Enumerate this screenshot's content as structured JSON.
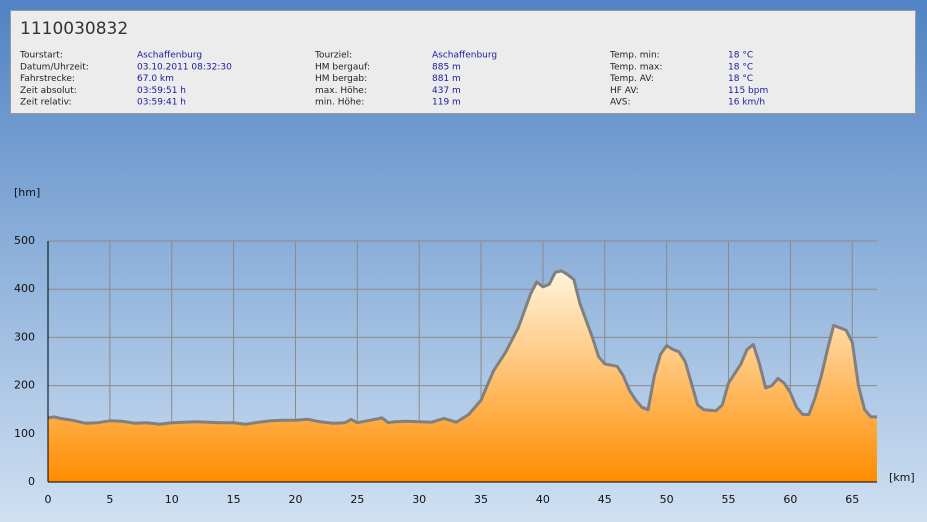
{
  "header": {
    "title": "1110030832",
    "fields": [
      [
        "Tourstart:",
        "Aschaffenburg"
      ],
      [
        "Datum/Uhrzeit:",
        "03.10.2011 08:32:30"
      ],
      [
        "Fahrstrecke:",
        "67.0 km"
      ],
      [
        "Zeit absolut:",
        "03:59:51 h"
      ],
      [
        "Zeit relativ:",
        "03:59:41 h"
      ],
      [
        "Tourziel:",
        "Aschaffenburg"
      ],
      [
        "HM bergauf:",
        "885 m"
      ],
      [
        "HM bergab:",
        "881 m"
      ],
      [
        "max. Höhe:",
        "437 m"
      ],
      [
        "min. Höhe:",
        "119 m"
      ],
      [
        "Temp. min:",
        "18 °C"
      ],
      [
        "Temp. max:",
        "18 °C"
      ],
      [
        "Temp. AV:",
        "18 °C"
      ],
      [
        "HF AV:",
        "115 bpm"
      ],
      [
        "AVS:",
        "16 km/h"
      ]
    ]
  },
  "chart_data": {
    "type": "area",
    "y_label": "[hm]",
    "x_label": "[km]",
    "x": [
      0,
      0.5,
      1,
      2,
      3,
      4,
      5,
      6,
      7,
      8,
      9,
      10,
      11,
      12,
      13,
      14,
      15,
      16,
      17,
      18,
      19,
      20,
      21,
      22,
      23,
      24,
      24.5,
      25,
      26,
      27,
      27.5,
      28,
      29,
      30,
      31,
      32,
      33,
      34,
      35,
      35.5,
      36,
      37,
      38,
      39,
      39.5,
      40,
      40.5,
      41,
      41.5,
      42,
      42.5,
      43,
      44,
      44.5,
      45,
      46,
      46.5,
      47,
      47.5,
      48,
      48.5,
      49,
      49.5,
      50,
      50.5,
      51,
      51.5,
      52,
      52.5,
      53,
      54,
      54.5,
      55,
      56,
      56.5,
      57,
      57.5,
      58,
      58.5,
      59,
      59.5,
      60,
      60.5,
      61,
      61.5,
      62,
      62.5,
      63,
      63.5,
      64,
      64.5,
      65,
      65.5,
      66,
      66.5,
      67
    ],
    "values": [
      133,
      135,
      132,
      128,
      122,
      123,
      127,
      126,
      122,
      123,
      120,
      123,
      124,
      125,
      124,
      123,
      123,
      120,
      124,
      127,
      128,
      128,
      130,
      125,
      122,
      123,
      130,
      123,
      128,
      133,
      123,
      125,
      126,
      125,
      124,
      132,
      124,
      140,
      170,
      200,
      230,
      270,
      320,
      390,
      415,
      405,
      410,
      435,
      438,
      430,
      420,
      370,
      300,
      260,
      245,
      240,
      220,
      190,
      170,
      155,
      150,
      220,
      265,
      283,
      275,
      270,
      250,
      205,
      160,
      150,
      148,
      160,
      205,
      245,
      275,
      285,
      245,
      195,
      200,
      215,
      205,
      185,
      155,
      140,
      140,
      175,
      220,
      275,
      325,
      320,
      315,
      290,
      200,
      150,
      135,
      135
    ],
    "xlim": [
      0,
      67
    ],
    "xticks": [
      0,
      5,
      10,
      15,
      20,
      25,
      30,
      35,
      40,
      45,
      50,
      55,
      60,
      65
    ],
    "ylim": [
      0,
      500
    ],
    "yticks": [
      0,
      100,
      200,
      300,
      400,
      500
    ],
    "grid": true,
    "color": "#ff8c00",
    "line_color": "#808080"
  }
}
